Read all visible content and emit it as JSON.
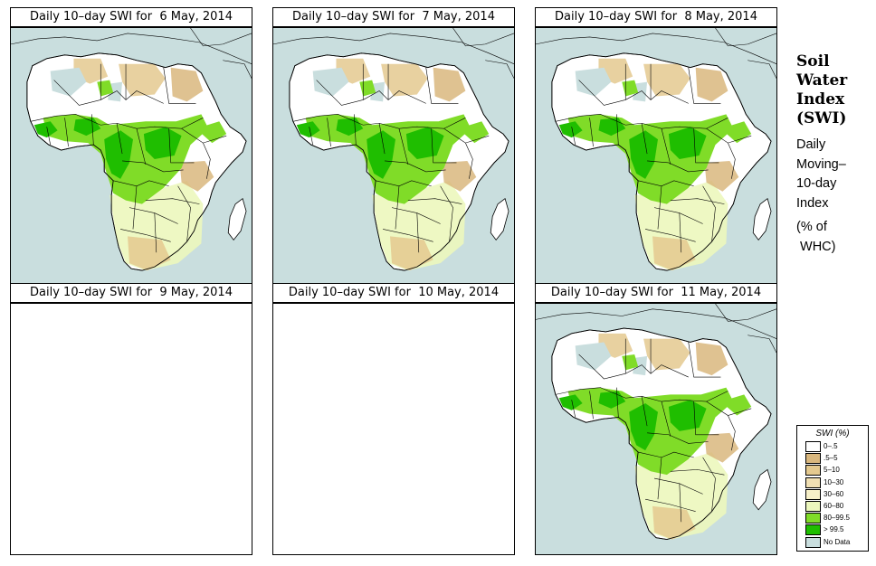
{
  "panels": [
    {
      "title": "Daily 10–day SWI for  6 May, 2014",
      "has_data": true
    },
    {
      "title": "Daily 10–day SWI for  7 May, 2014",
      "has_data": true
    },
    {
      "title": "Daily 10–day SWI for  8 May, 2014",
      "has_data": true
    },
    {
      "title": "Daily 10–day SWI for  9 May, 2014",
      "has_data": false
    },
    {
      "title": "Daily 10–day SWI for  10 May, 2014",
      "has_data": false
    },
    {
      "title": "Daily 10–day SWI for  11 May, 2014",
      "has_data": true
    }
  ],
  "side": {
    "title_lines": [
      "Soil",
      "Water",
      "Index",
      "(SWI)"
    ],
    "subtitle_lines": [
      "Daily",
      "Moving–",
      "10-day",
      "Index"
    ],
    "unit_lines": [
      "(% of",
      " WHC)"
    ]
  },
  "legend": {
    "title": "SWI (%)",
    "items": [
      {
        "label": "0–.5",
        "color": "#ffffff"
      },
      {
        "label": ".5–5",
        "color": "#d9b77e"
      },
      {
        "label": "5–10",
        "color": "#e4c98f"
      },
      {
        "label": "10–30",
        "color": "#f1e0b3"
      },
      {
        "label": "30–60",
        "color": "#f7f0c8"
      },
      {
        "label": "60–80",
        "color": "#ecf7bd"
      },
      {
        "label": "80–99.5",
        "color": "#80dc28"
      },
      {
        "label": "> 99.5",
        "color": "#1fbe00"
      },
      {
        "label": "No Data",
        "color": "#c9dede"
      }
    ]
  },
  "colors": {
    "ocean": "#c9dede",
    "border": "#000000",
    "very_wet": "#1fbe00",
    "wet": "#80dc28",
    "moderate": "#ecf7bd",
    "dry": "#e4c98f",
    "very_dry": "#d9b77e",
    "no_data": "#c9dede",
    "blank": "#ffffff"
  }
}
